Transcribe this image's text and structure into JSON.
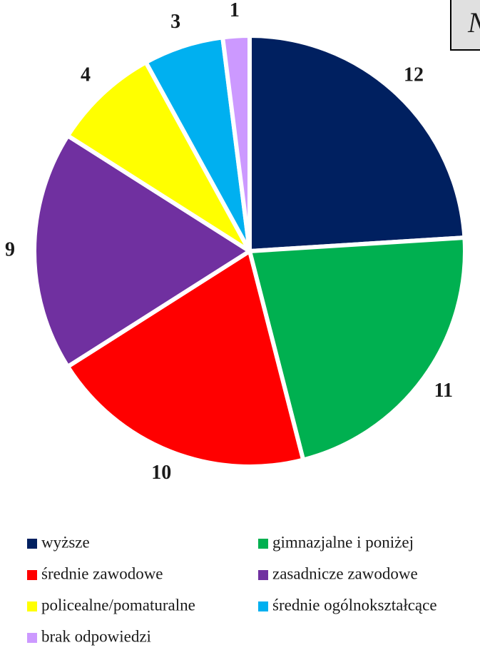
{
  "chart_data": {
    "type": "pie",
    "title": "N",
    "categories": [
      "wyższe",
      "gimnazjalne i poniżej",
      "średnie zawodowe",
      "zasadnicze zawodowe",
      "policealne/pomaturalne",
      "średnie ogólnokształcące",
      "brak odpowiedzi"
    ],
    "values": [
      12,
      11,
      10,
      9,
      4,
      3,
      1
    ],
    "colors": [
      "#002060",
      "#00b050",
      "#ff0000",
      "#7030a0",
      "#ffff00",
      "#00b0f0",
      "#cc99ff"
    ],
    "legend": "bottom"
  }
}
